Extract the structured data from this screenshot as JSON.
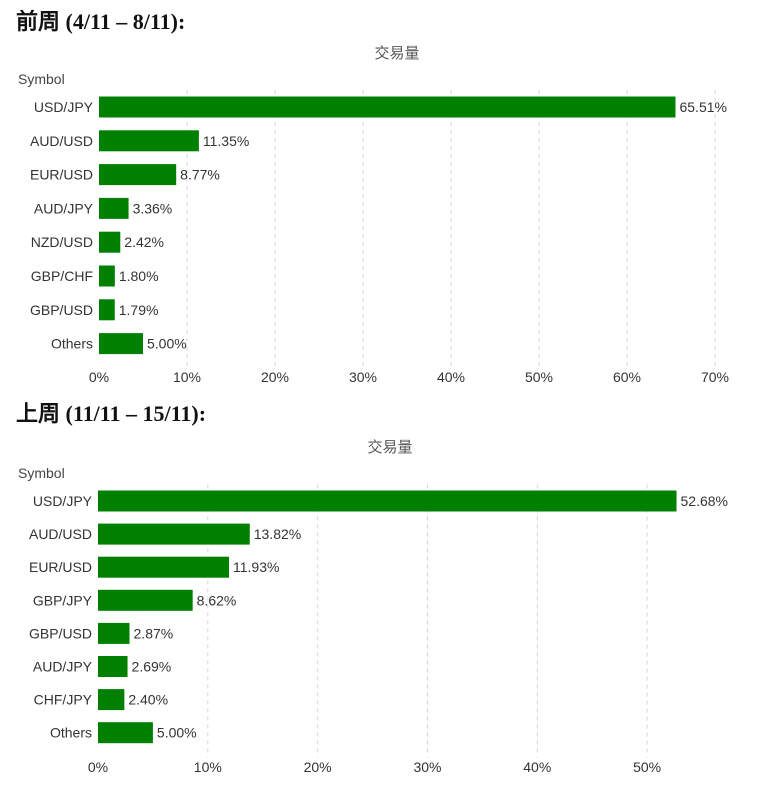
{
  "headings": [
    "前周 (4/11 – 8/11):",
    "上周 (11/11 – 15/11):"
  ],
  "chart_data": [
    {
      "type": "bar",
      "orientation": "horizontal",
      "title": "交易量",
      "ylabel": "Symbol",
      "categories": [
        "USD/JPY",
        "AUD/USD",
        "EUR/USD",
        "AUD/JPY",
        "NZD/USD",
        "GBP/CHF",
        "GBP/USD",
        "Others"
      ],
      "values": [
        65.51,
        11.35,
        8.77,
        3.36,
        2.42,
        1.8,
        1.79,
        5.0
      ],
      "value_labels": [
        "65.51%",
        "11.35%",
        "8.77%",
        "3.36%",
        "2.42%",
        "1.80%",
        "1.79%",
        "5.00%"
      ],
      "xlim": [
        0,
        70
      ],
      "xticks": [
        0,
        10,
        20,
        30,
        40,
        50,
        60,
        70
      ],
      "xtick_labels": [
        "0%",
        "10%",
        "20%",
        "30%",
        "40%",
        "50%",
        "60%",
        "70%"
      ],
      "grid": true,
      "color": "#008000"
    },
    {
      "type": "bar",
      "orientation": "horizontal",
      "title": "交易量",
      "ylabel": "Symbol",
      "categories": [
        "USD/JPY",
        "AUD/USD",
        "EUR/USD",
        "GBP/JPY",
        "GBP/USD",
        "AUD/JPY",
        "CHF/JPY",
        "Others"
      ],
      "values": [
        52.68,
        13.82,
        11.93,
        8.62,
        2.87,
        2.69,
        2.4,
        5.0
      ],
      "value_labels": [
        "52.68%",
        "13.82%",
        "11.93%",
        "8.62%",
        "2.87%",
        "2.69%",
        "2.40%",
        "5.00%"
      ],
      "xlim": [
        0,
        55
      ],
      "xticks": [
        0,
        10,
        20,
        30,
        40,
        50
      ],
      "xtick_labels": [
        "0%",
        "10%",
        "20%",
        "30%",
        "40%",
        "50%"
      ],
      "grid": true,
      "color": "#008000"
    }
  ]
}
